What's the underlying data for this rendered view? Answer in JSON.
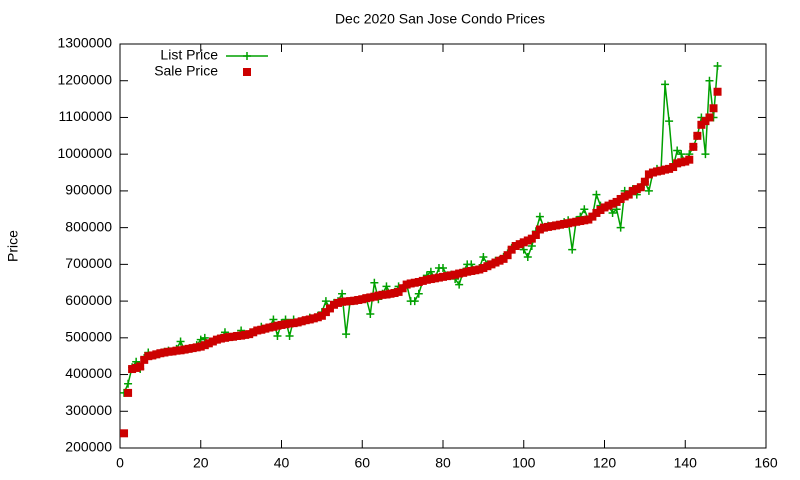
{
  "chart_data": {
    "type": "line",
    "title": "Dec 2020 San Jose Condo Prices",
    "y_label": "Price",
    "legend": "top-left",
    "x": [
      1,
      2,
      3,
      4,
      5,
      6,
      7,
      8,
      9,
      10,
      11,
      12,
      13,
      14,
      15,
      16,
      17,
      18,
      19,
      20,
      21,
      22,
      23,
      24,
      25,
      26,
      27,
      28,
      29,
      30,
      31,
      32,
      33,
      34,
      35,
      36,
      37,
      38,
      39,
      40,
      41,
      42,
      43,
      44,
      45,
      46,
      47,
      48,
      49,
      50,
      51,
      52,
      53,
      54,
      55,
      56,
      57,
      58,
      59,
      60,
      61,
      62,
      63,
      64,
      65,
      66,
      67,
      68,
      69,
      70,
      71,
      72,
      73,
      74,
      75,
      76,
      77,
      78,
      79,
      80,
      81,
      82,
      83,
      84,
      85,
      86,
      87,
      88,
      89,
      90,
      91,
      92,
      93,
      94,
      95,
      96,
      97,
      98,
      99,
      100,
      101,
      102,
      103,
      104,
      105,
      106,
      107,
      108,
      109,
      110,
      111,
      112,
      113,
      114,
      115,
      116,
      117,
      118,
      119,
      120,
      121,
      122,
      123,
      124,
      125,
      126,
      127,
      128,
      129,
      130,
      131,
      132,
      133,
      134,
      135,
      136,
      137,
      138,
      139,
      140,
      141,
      142,
      143,
      144,
      145,
      146,
      147,
      148
    ],
    "series": [
      {
        "name": "List Price",
        "color": "#00a000",
        "style": "linespoints",
        "values": [
          350000,
          375000,
          420000,
          435000,
          415000,
          445000,
          460000,
          452000,
          455000,
          458000,
          462000,
          465000,
          463000,
          470000,
          490000,
          468000,
          470000,
          472000,
          480000,
          495000,
          500000,
          485000,
          490000,
          495000,
          500000,
          515000,
          502000,
          503000,
          505000,
          520000,
          508000,
          510000,
          515000,
          520000,
          530000,
          525000,
          528000,
          550000,
          505000,
          540000,
          550000,
          505000,
          550000,
          542000,
          545000,
          548000,
          555000,
          553000,
          560000,
          570000,
          600000,
          580000,
          595000,
          600000,
          620000,
          510000,
          600000,
          601000,
          603000,
          605000,
          608000,
          565000,
          650000,
          605000,
          620000,
          640000,
          620000,
          625000,
          640000,
          635000,
          645000,
          600000,
          600000,
          620000,
          655000,
          670000,
          680000,
          662000,
          690000,
          690000,
          670000,
          672000,
          660000,
          645000,
          680000,
          700000,
          700000,
          684000,
          690000,
          720000,
          700000,
          700000,
          710000,
          712000,
          720000,
          730000,
          745000,
          750000,
          755000,
          740000,
          720000,
          750000,
          790000,
          830000,
          800000,
          805000,
          804000,
          806000,
          808000,
          815000,
          820000,
          740000,
          820000,
          830000,
          850000,
          822000,
          830000,
          890000,
          860000,
          855000,
          860000,
          840000,
          850000,
          800000,
          900000,
          890000,
          905000,
          890000,
          910000,
          925000,
          900000,
          950000,
          960000,
          955000,
          1190000,
          1090000,
          965000,
          1010000,
          1000000,
          980000,
          1000000,
          1020000,
          1050000,
          1100000,
          1000000,
          1200000,
          1100000,
          1240000
        ]
      },
      {
        "name": "Sale Price",
        "color": "#cc0000",
        "style": "points",
        "values": [
          240000,
          350000,
          415000,
          418000,
          422000,
          440000,
          450000,
          452000,
          455000,
          458000,
          460000,
          462000,
          463000,
          465000,
          466000,
          468000,
          470000,
          472000,
          474000,
          476000,
          480000,
          485000,
          490000,
          495000,
          498000,
          500000,
          502000,
          503000,
          505000,
          506000,
          508000,
          510000,
          515000,
          520000,
          522000,
          525000,
          528000,
          530000,
          533000,
          535000,
          537000,
          539000,
          540000,
          542000,
          545000,
          548000,
          550000,
          553000,
          556000,
          560000,
          570000,
          580000,
          590000,
          595000,
          598000,
          599000,
          600000,
          601000,
          603000,
          605000,
          608000,
          610000,
          612000,
          615000,
          617000,
          618000,
          620000,
          622000,
          625000,
          635000,
          645000,
          648000,
          650000,
          652000,
          655000,
          658000,
          660000,
          662000,
          664000,
          666000,
          668000,
          670000,
          672000,
          675000,
          677000,
          680000,
          682000,
          684000,
          686000,
          690000,
          695000,
          700000,
          705000,
          710000,
          715000,
          725000,
          740000,
          750000,
          755000,
          760000,
          765000,
          770000,
          780000,
          795000,
          800000,
          802000,
          804000,
          806000,
          808000,
          810000,
          812000,
          814000,
          816000,
          818000,
          820000,
          822000,
          830000,
          840000,
          848000,
          855000,
          860000,
          865000,
          870000,
          878000,
          885000,
          890000,
          900000,
          905000,
          910000,
          925000,
          945000,
          950000,
          953000,
          955000,
          958000,
          960000,
          965000,
          975000,
          978000,
          980000,
          985000,
          1020000,
          1050000,
          1080000,
          1090000,
          1100000,
          1125000,
          1170000
        ]
      }
    ],
    "xlim": [
      0,
      160
    ],
    "xticks": [
      0,
      20,
      40,
      60,
      80,
      100,
      120,
      140,
      160
    ],
    "ylim": [
      200000,
      1300000
    ],
    "yticks": [
      200000,
      300000,
      400000,
      500000,
      600000,
      700000,
      800000,
      900000,
      1000000,
      1100000,
      1200000,
      1300000
    ],
    "grid": false
  }
}
